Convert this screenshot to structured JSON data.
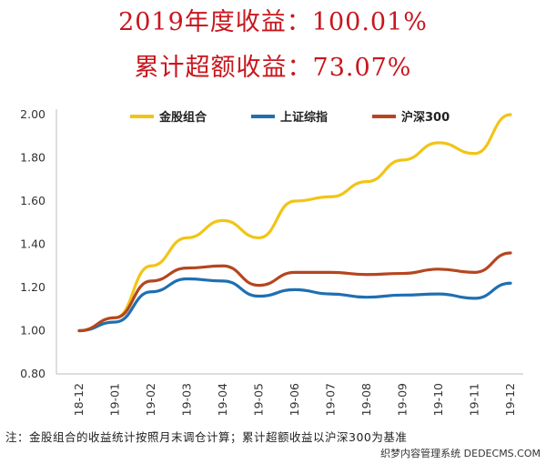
{
  "header": {
    "title_line1": "2019年度收益：100.01%",
    "title_line2": "累计超额收益：73.07%"
  },
  "footnote": "注：金股组合的收益统计按照月末调仓计算；累计超额收益以沪深300为基准",
  "watermark": "织梦内容管理系统 DEDECMS.COM",
  "chart_data": {
    "type": "line",
    "categories": [
      "18-12",
      "19-01",
      "19-02",
      "19-03",
      "19-04",
      "19-05",
      "19-06",
      "19-07",
      "19-08",
      "19-09",
      "19-10",
      "19-11",
      "19-12"
    ],
    "ylim": [
      0.8,
      2.0
    ],
    "yticks": [
      "0.80",
      "1.00",
      "1.20",
      "1.40",
      "1.60",
      "1.80",
      "2.00"
    ],
    "ytick_values": [
      0.8,
      1.0,
      1.2,
      1.4,
      1.6,
      1.8,
      2.0
    ],
    "legend_position": "top",
    "grid": false,
    "series": [
      {
        "name": "金股组合",
        "color": "#f2c416",
        "values": [
          1.0,
          1.06,
          1.3,
          1.43,
          1.51,
          1.43,
          1.6,
          1.62,
          1.69,
          1.79,
          1.87,
          1.82,
          2.0
        ]
      },
      {
        "name": "上证综指",
        "color": "#1f6fb2",
        "values": [
          1.0,
          1.04,
          1.18,
          1.24,
          1.23,
          1.16,
          1.19,
          1.17,
          1.155,
          1.165,
          1.17,
          1.15,
          1.22
        ]
      },
      {
        "name": "沪深300",
        "color": "#b5461f",
        "values": [
          1.0,
          1.06,
          1.23,
          1.29,
          1.3,
          1.21,
          1.27,
          1.27,
          1.26,
          1.265,
          1.285,
          1.27,
          1.36
        ]
      }
    ]
  }
}
